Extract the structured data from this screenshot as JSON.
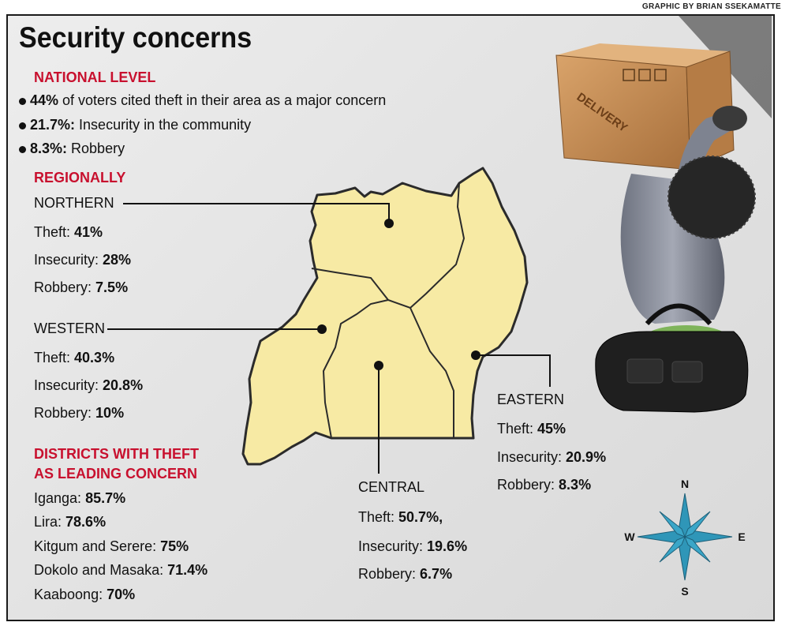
{
  "credit": "GRAPHIC BY BRIAN SSEKAMATTE",
  "title": "Security concerns",
  "national": {
    "heading": "NATIONAL LEVEL",
    "items": [
      {
        "value": "44%",
        "text": " of voters cited theft in their area as a major concern"
      },
      {
        "value": "21.7%:",
        "text": " Insecurity in the community"
      },
      {
        "value": "8.3%:",
        "text": " Robbery"
      }
    ]
  },
  "regional": {
    "heading": "REGIONALLY",
    "northern": {
      "name": "NORTHERN",
      "theft": "41%",
      "insecurity": "28%",
      "robbery": "7.5%"
    },
    "western": {
      "name": "WESTERN",
      "theft": "40.3%",
      "insecurity": "20.8%",
      "robbery": "10%"
    },
    "central": {
      "name": "CENTRAL",
      "theft": "50.7%,",
      "insecurity": "19.6%",
      "robbery": "6.7%"
    },
    "eastern": {
      "name": "EASTERN",
      "theft": "45%",
      "insecurity": "20.9%",
      "robbery": "8.3%"
    }
  },
  "labels": {
    "theft": "Theft: ",
    "insecurity": "Insecurity: ",
    "robbery": "Robbery: "
  },
  "districts": {
    "heading_line1": "DISTRICTS WITH THEFT",
    "heading_line2": "AS LEADING CONCERN",
    "items": [
      {
        "name": "Iganga: ",
        "value": "85.7%"
      },
      {
        "name": "Lira: ",
        "value": "78.6%"
      },
      {
        "name": "Kitgum and Serere: ",
        "value": "75%"
      },
      {
        "name": "Dokolo and Masaka: ",
        "value": "71.4%"
      },
      {
        "name": "Kaaboong: ",
        "value": "70%"
      }
    ]
  },
  "compass": {
    "n": "N",
    "s": "S",
    "e": "E",
    "w": "W"
  },
  "box_text": "DELIVERY",
  "colors": {
    "map_fill": "#f7eaa4",
    "accent_red": "#c8102e",
    "compass": "#2f96b8"
  }
}
